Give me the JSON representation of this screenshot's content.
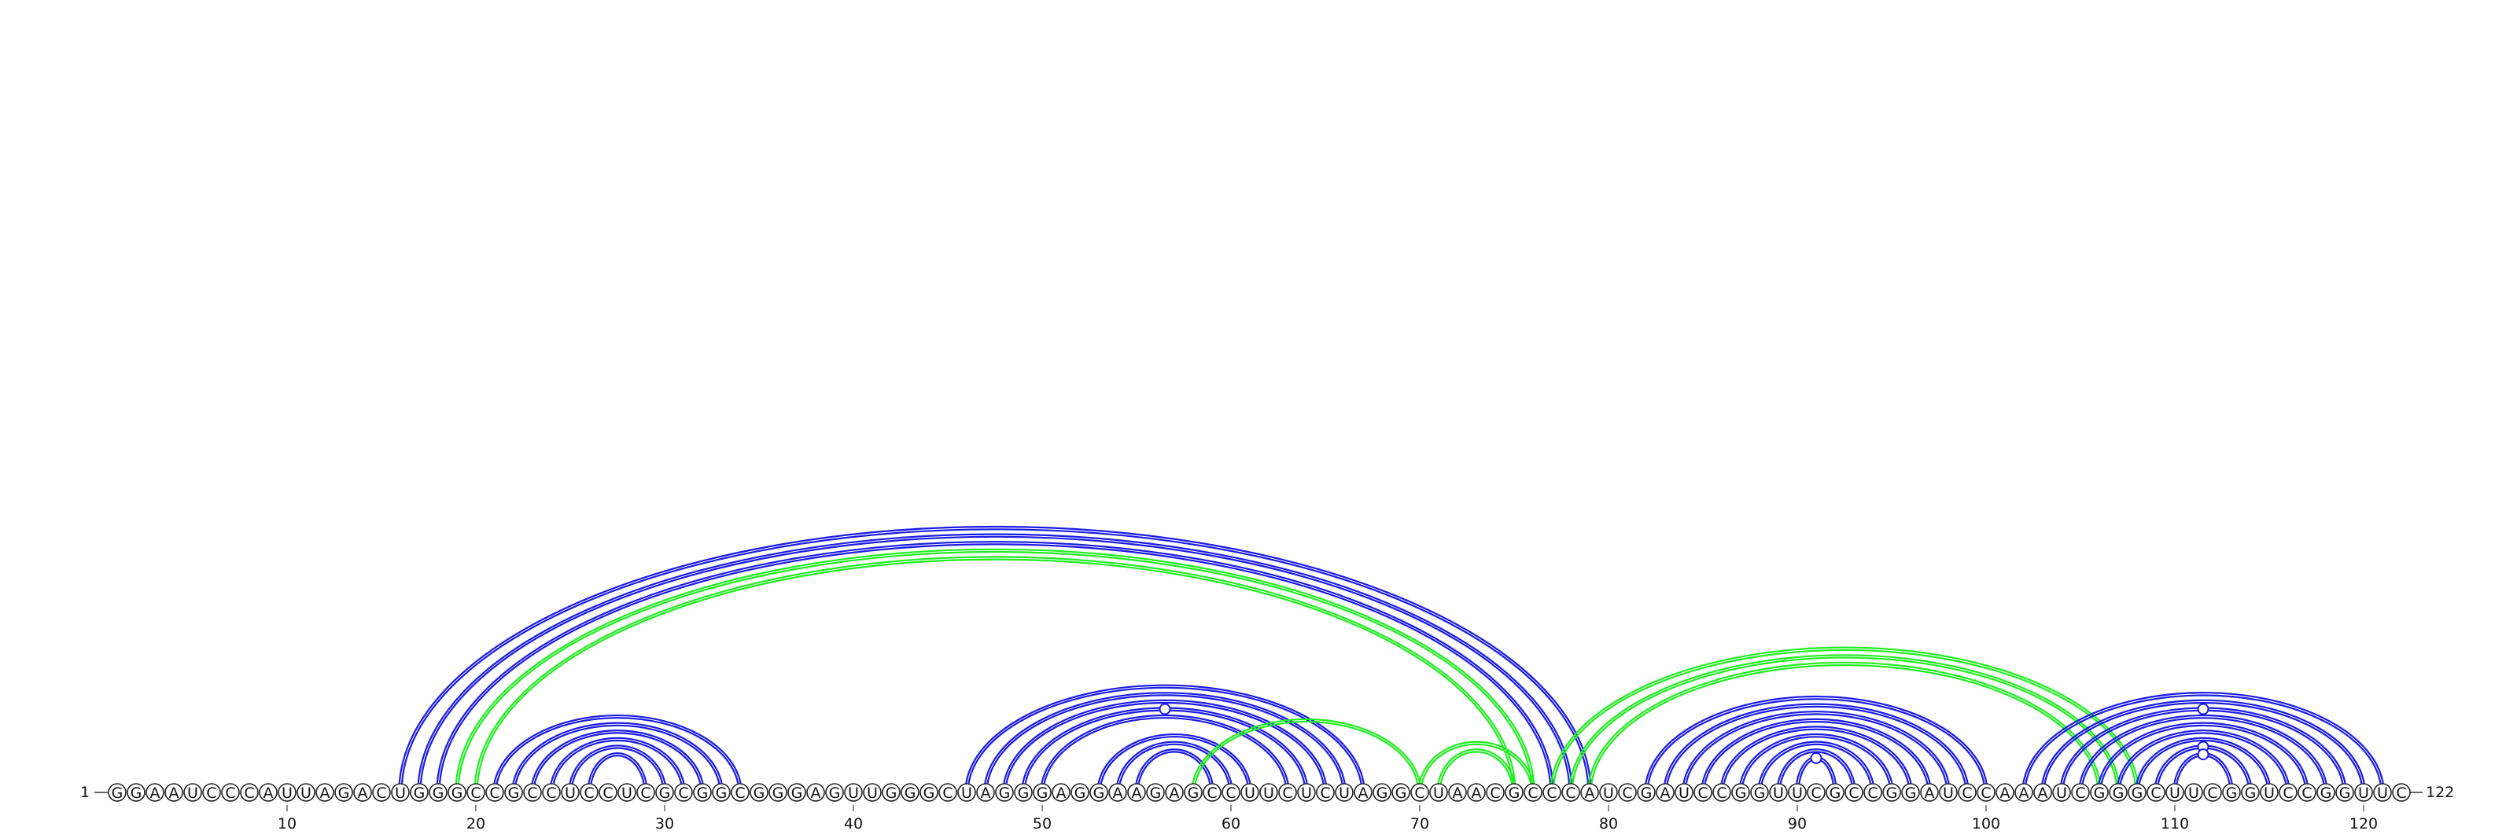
{
  "sequence": "GGAAUCCCAUUAGACUGGGCCGCCUCCUCGCGGCGGGAGUUGGGCUAGGGAGGAAGAGCCUUCUCUAGGCUAACGCCCAUCGAUCCGGUUCGCCGGAUCCAAAUCGGGCUUCGGUCCGGUUC",
  "start_label": "1",
  "end_label": "122",
  "ticks": [
    10,
    20,
    30,
    40,
    50,
    60,
    70,
    80,
    90,
    100,
    110,
    120
  ],
  "colors": {
    "blue": "#1a1ae6",
    "green": "#22ee22"
  },
  "arcs": [
    {
      "i": 16,
      "j": 79,
      "color": "blue"
    },
    {
      "i": 17,
      "j": 78,
      "color": "blue"
    },
    {
      "i": 18,
      "j": 77,
      "color": "blue"
    },
    {
      "i": 19,
      "j": 76,
      "color": "green"
    },
    {
      "i": 20,
      "j": 75,
      "color": "green"
    },
    {
      "i": 21,
      "j": 34,
      "color": "blue"
    },
    {
      "i": 22,
      "j": 33,
      "color": "blue"
    },
    {
      "i": 23,
      "j": 32,
      "color": "blue"
    },
    {
      "i": 24,
      "j": 31,
      "color": "blue"
    },
    {
      "i": 25,
      "j": 30,
      "color": "blue"
    },
    {
      "i": 26,
      "j": 29,
      "color": "blue"
    },
    {
      "i": 46,
      "j": 67,
      "color": "blue"
    },
    {
      "i": 47,
      "j": 66,
      "color": "blue"
    },
    {
      "i": 48,
      "j": 65,
      "color": "blue"
    },
    {
      "i": 49,
      "j": 64,
      "color": "blue",
      "marker": true
    },
    {
      "i": 50,
      "j": 63,
      "color": "blue"
    },
    {
      "i": 53,
      "j": 61,
      "color": "blue"
    },
    {
      "i": 54,
      "j": 60,
      "color": "blue"
    },
    {
      "i": 55,
      "j": 59,
      "color": "blue"
    },
    {
      "i": 58,
      "j": 70,
      "color": "green"
    },
    {
      "i": 70,
      "j": 76,
      "color": "green"
    },
    {
      "i": 71,
      "j": 75,
      "color": "green"
    },
    {
      "i": 77,
      "j": 108,
      "color": "green"
    },
    {
      "i": 78,
      "j": 107,
      "color": "green"
    },
    {
      "i": 79,
      "j": 106,
      "color": "green"
    },
    {
      "i": 82,
      "j": 100,
      "color": "blue"
    },
    {
      "i": 83,
      "j": 99,
      "color": "blue"
    },
    {
      "i": 84,
      "j": 98,
      "color": "blue"
    },
    {
      "i": 85,
      "j": 97,
      "color": "blue"
    },
    {
      "i": 86,
      "j": 96,
      "color": "blue"
    },
    {
      "i": 87,
      "j": 95,
      "color": "blue"
    },
    {
      "i": 88,
      "j": 94,
      "color": "blue"
    },
    {
      "i": 89,
      "j": 93,
      "color": "blue"
    },
    {
      "i": 90,
      "j": 92,
      "color": "blue",
      "marker": true
    },
    {
      "i": 102,
      "j": 121,
      "color": "blue"
    },
    {
      "i": 103,
      "j": 120,
      "color": "blue"
    },
    {
      "i": 104,
      "j": 119,
      "color": "blue",
      "marker": true
    },
    {
      "i": 105,
      "j": 118,
      "color": "blue"
    },
    {
      "i": 106,
      "j": 117,
      "color": "blue"
    },
    {
      "i": 107,
      "j": 116,
      "color": "blue"
    },
    {
      "i": 108,
      "j": 115,
      "color": "blue"
    },
    {
      "i": 109,
      "j": 114,
      "color": "blue",
      "marker": true
    },
    {
      "i": 110,
      "j": 113,
      "color": "blue",
      "marker": true
    }
  ]
}
